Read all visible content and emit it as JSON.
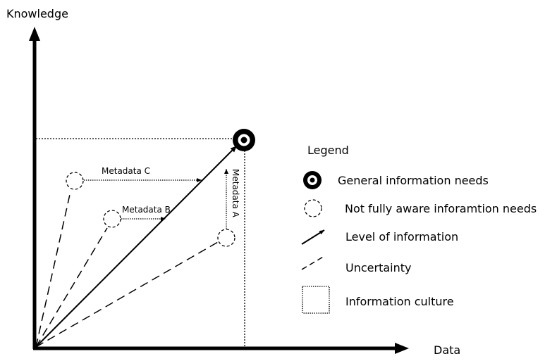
{
  "axes": {
    "y_label": "Knowledge",
    "x_label": "Data"
  },
  "annotations": {
    "metadata_c": "Metadata C",
    "metadata_b": "Metadata B",
    "metadata_a": "Metadata A"
  },
  "legend": {
    "title": "Legend",
    "items": [
      {
        "label": "General information needs",
        "icon": "bullseye-icon"
      },
      {
        "label": "Not fully aware inforamtion needs",
        "icon": "dashed-circle-icon"
      },
      {
        "label": "Level of information",
        "icon": "solid-arrow-icon"
      },
      {
        "label": "Uncertainty",
        "icon": "dashed-line-icon"
      },
      {
        "label": "Information culture",
        "icon": "dotted-square-icon"
      }
    ]
  }
}
